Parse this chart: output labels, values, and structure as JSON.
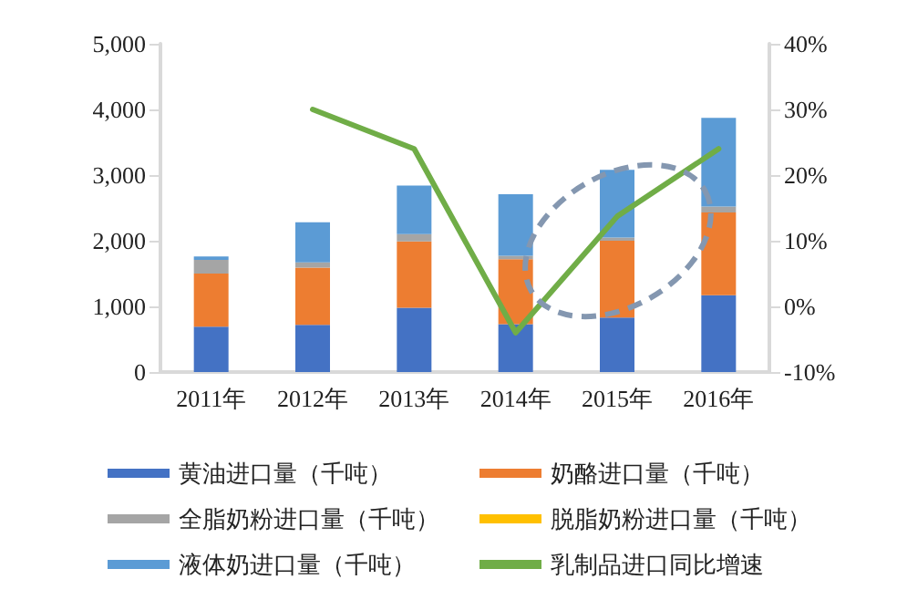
{
  "chart_data": {
    "type": "bar",
    "stacked": true,
    "categories": [
      "2011年",
      "2012年",
      "2013年",
      "2014年",
      "2015年",
      "2016年"
    ],
    "series": [
      {
        "name": "黄油进口量（千吨）",
        "color": "#4472c4",
        "values": [
          690,
          720,
          980,
          730,
          830,
          1170
        ]
      },
      {
        "name": "奶酪进口量（千吨）",
        "color": "#ed7d31",
        "values": [
          810,
          870,
          1010,
          990,
          1170,
          1260
        ]
      },
      {
        "name": "全脂奶粉进口量（千吨）",
        "color": "#a5a5a5",
        "values": [
          210,
          80,
          110,
          50,
          50,
          90
        ]
      },
      {
        "name": "脱脂奶粉进口量（千吨）",
        "color": "#ffc000",
        "values": [
          0,
          0,
          0,
          0,
          0,
          0
        ]
      },
      {
        "name": "液体奶进口量（千吨）",
        "color": "#5b9bd5",
        "values": [
          50,
          610,
          740,
          940,
          1030,
          1350
        ]
      },
      {
        "name": "乳制品进口同比增速",
        "type": "line",
        "axis": "y2",
        "color": "#70ad47",
        "marker": "none",
        "line_style": "solid",
        "values": [
          null,
          30,
          24,
          -4,
          13.7,
          24
        ]
      }
    ],
    "ylim": [
      0,
      5000
    ],
    "yticks": [
      0,
      {
        "value": 1000,
        "label": "1,000"
      },
      {
        "value": 2000,
        "label": "2,000"
      },
      {
        "value": 3000,
        "label": "3,000"
      },
      {
        "value": 4000,
        "label": "4,000"
      },
      {
        "value": 5000,
        "label": "5,000"
      }
    ],
    "y2lim": [
      -10,
      40
    ],
    "y2ticks": [
      {
        "value": -10,
        "label": "-10%"
      },
      {
        "value": 0,
        "label": "0%"
      },
      {
        "value": 10,
        "label": "10%"
      },
      {
        "value": 20,
        "label": "20%"
      },
      {
        "value": 30,
        "label": "30%"
      },
      {
        "value": 40,
        "label": "40%"
      }
    ],
    "grid": false,
    "legend": "bottom"
  }
}
